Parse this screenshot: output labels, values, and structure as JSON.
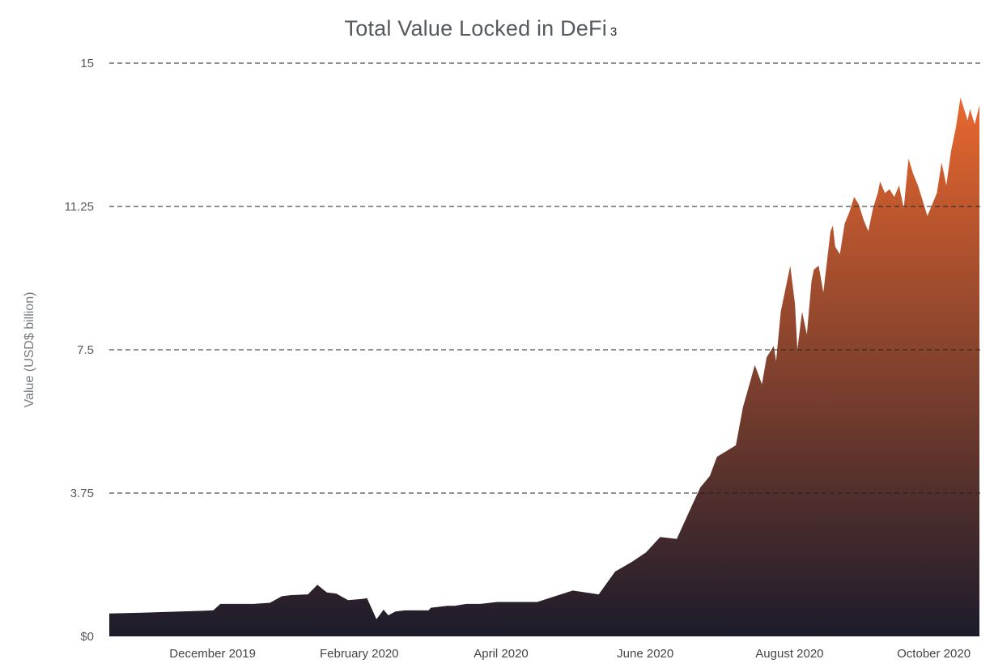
{
  "chart_data": {
    "type": "area",
    "title": "Total Value Locked in DeFi",
    "title_footnote": "3",
    "xlabel": "",
    "ylabel": "Value (USD$ billion)",
    "y_ticks": [
      "$0",
      "3.75",
      "7.5",
      "11.25",
      "15"
    ],
    "y_tick_values": [
      0,
      3.75,
      7.5,
      11.25,
      15
    ],
    "ylim": [
      0,
      15
    ],
    "x_ticks": [
      "December 2019",
      "February 2020",
      "April 2020",
      "June 2020",
      "August 2020",
      "October 2020"
    ],
    "x_tick_dates": [
      "2019-12-01",
      "2020-02-01",
      "2020-04-01",
      "2020-06-01",
      "2020-08-01",
      "2020-10-01"
    ],
    "xlim": [
      "2019-11-01",
      "2020-11-03"
    ],
    "grid": "horizontal-dashed",
    "fill_gradient": {
      "top": "#e8672f",
      "bottom": "#1c1b2b"
    },
    "series": [
      {
        "x": [
          "2019-11-01",
          "2019-11-15",
          "2019-12-01",
          "2019-12-15",
          "2019-12-18",
          "2019-12-29",
          "2020-01-01",
          "2020-01-08",
          "2020-01-13",
          "2020-01-17",
          "2020-01-24",
          "2020-01-28",
          "2020-02-01",
          "2020-02-05",
          "2020-02-10",
          "2020-02-16",
          "2020-02-18",
          "2020-02-22",
          "2020-02-25",
          "2020-02-27",
          "2020-03-01",
          "2020-03-05",
          "2020-03-15",
          "2020-03-16",
          "2020-03-23",
          "2020-03-26",
          "2020-03-31",
          "2020-04-06",
          "2020-04-13",
          "2020-04-20",
          "2020-04-30",
          "2020-05-15",
          "2020-05-26",
          "2020-06-02",
          "2020-06-09",
          "2020-06-15",
          "2020-06-21",
          "2020-06-28",
          "2020-07-05",
          "2020-07-08",
          "2020-07-12",
          "2020-07-15",
          "2020-07-23",
          "2020-07-26",
          "2020-07-29",
          "2020-07-31",
          "2020-08-03",
          "2020-08-05",
          "2020-08-08",
          "2020-08-09",
          "2020-08-11",
          "2020-08-15",
          "2020-08-17",
          "2020-08-18",
          "2020-08-20",
          "2020-08-22",
          "2020-08-24",
          "2020-08-25",
          "2020-08-27",
          "2020-08-29",
          "2020-09-01",
          "2020-09-02",
          "2020-09-03",
          "2020-09-05",
          "2020-09-07",
          "2020-09-09",
          "2020-09-11",
          "2020-09-13",
          "2020-09-15",
          "2020-09-17",
          "2020-09-19",
          "2020-09-21",
          "2020-09-22",
          "2020-09-24",
          "2020-09-26",
          "2020-09-28",
          "2020-09-30",
          "2020-10-02",
          "2020-10-04",
          "2020-10-06",
          "2020-10-08",
          "2020-10-10",
          "2020-10-12",
          "2020-10-14",
          "2020-10-16",
          "2020-10-18",
          "2020-10-20",
          "2020-10-22",
          "2020-10-24",
          "2020-10-26",
          "2020-10-28",
          "2020-10-29",
          "2020-10-30",
          "2020-11-01",
          "2020-11-03"
        ],
        "y": [
          0.6,
          0.62,
          0.65,
          0.68,
          0.85,
          0.85,
          0.85,
          0.88,
          1.05,
          1.08,
          1.1,
          1.35,
          1.15,
          1.12,
          0.95,
          0.98,
          1.0,
          0.45,
          0.7,
          0.55,
          0.65,
          0.68,
          0.68,
          0.75,
          0.8,
          0.8,
          0.85,
          0.85,
          0.9,
          0.9,
          0.9,
          1.2,
          1.1,
          1.7,
          1.95,
          2.2,
          2.6,
          2.55,
          3.5,
          3.9,
          4.2,
          4.7,
          5.0,
          6.0,
          6.65,
          7.1,
          6.6,
          7.3,
          7.6,
          7.2,
          8.5,
          9.7,
          8.7,
          7.5,
          8.5,
          7.9,
          9.3,
          9.6,
          9.7,
          9.0,
          10.6,
          10.75,
          10.2,
          10.0,
          10.8,
          11.1,
          11.5,
          11.3,
          10.9,
          10.6,
          11.2,
          11.6,
          11.9,
          11.6,
          11.7,
          11.5,
          11.8,
          11.2,
          12.5,
          12.1,
          11.8,
          11.4,
          11.0,
          11.3,
          11.6,
          12.4,
          11.8,
          12.7,
          13.3,
          14.1,
          13.7,
          13.5,
          13.8,
          13.4,
          13.9
        ]
      }
    ]
  }
}
